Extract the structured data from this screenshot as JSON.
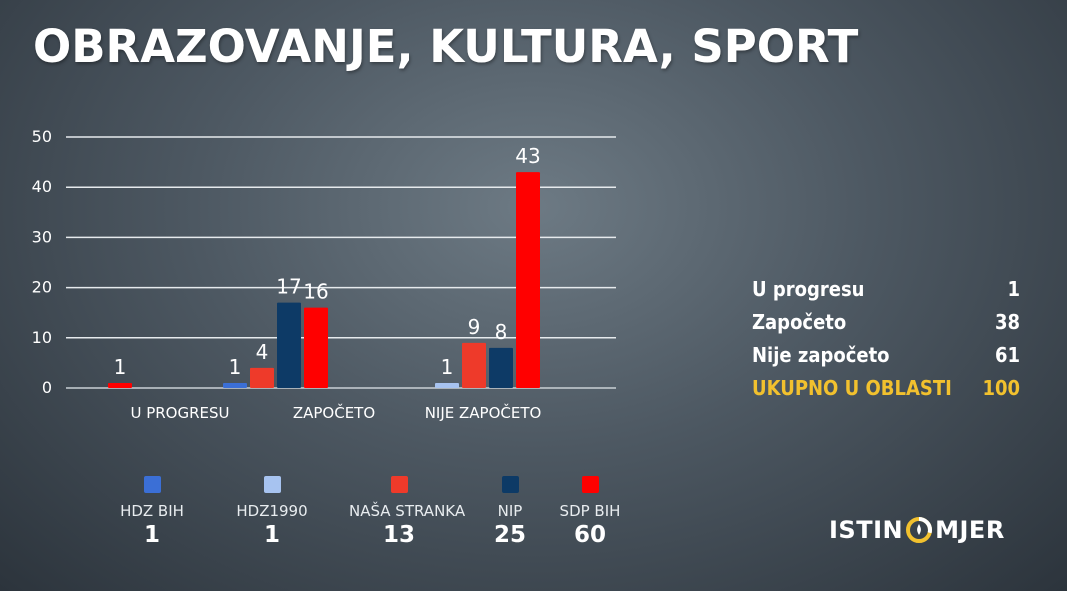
{
  "title": "OBRAZOVANJE, KULTURA, SPORT",
  "chart_data": {
    "type": "bar",
    "ylim": [
      0,
      50
    ],
    "yticks": [
      "0",
      "10",
      "20",
      "30",
      "40",
      "50"
    ],
    "categories": [
      "U PROGRESU",
      "ZAPOČETO",
      "NIJE ZAPOČETO"
    ],
    "grid": true,
    "series_colors": {
      "HDZ BIH": "#3b6fd6",
      "HDZ1990": "#a7c3f0",
      "NAŠA STRANKA": "#ee3a2a",
      "NIP": "#0d3a66",
      "SDP BIH": "#ff0000"
    },
    "bars": [
      {
        "category": "U PROGRESU",
        "series": "SDP BIH",
        "value": 1,
        "label": "1"
      },
      {
        "category": "ZAPOČETO",
        "series": "HDZ BIH",
        "value": 1,
        "label": "1"
      },
      {
        "category": "ZAPOČETO",
        "series": "NAŠA STRANKA",
        "value": 4,
        "label": "4"
      },
      {
        "category": "ZAPOČETO",
        "series": "NIP",
        "value": 17,
        "label": "17"
      },
      {
        "category": "ZAPOČETO",
        "series": "SDP BIH",
        "value": 16,
        "label": "16"
      },
      {
        "category": "NIJE ZAPOČETO",
        "series": "HDZ1990",
        "value": 1,
        "label": "1"
      },
      {
        "category": "NIJE ZAPOČETO",
        "series": "NAŠA STRANKA",
        "value": 9,
        "label": "9"
      },
      {
        "category": "NIJE ZAPOČETO",
        "series": "NIP",
        "value": 8,
        "label": "8"
      },
      {
        "category": "NIJE ZAPOČETO",
        "series": "SDP BIH",
        "value": 43,
        "label": "43"
      }
    ]
  },
  "legend": [
    {
      "name": "HDZ BIH",
      "count": "1",
      "color": "#3b6fd6"
    },
    {
      "name": "HDZ1990",
      "count": "1",
      "color": "#a7c3f0"
    },
    {
      "name": "NAŠA STRANKA",
      "count": "13",
      "color": "#ee3a2a"
    },
    {
      "name": "NIP",
      "count": "25",
      "color": "#0d3a66"
    },
    {
      "name": "SDP BIH",
      "count": "60",
      "color": "#ff0000"
    }
  ],
  "summary": [
    {
      "label": "U progresu",
      "value": "1"
    },
    {
      "label": "Započeto",
      "value": "38"
    },
    {
      "label": "Nije započeto",
      "value": "61"
    },
    {
      "label": "UKUPNO U OBLASTI",
      "value": "100"
    }
  ],
  "summary_total_color": "#f2c12e",
  "logo": {
    "left": "ISTIN",
    "right": "MJER"
  }
}
